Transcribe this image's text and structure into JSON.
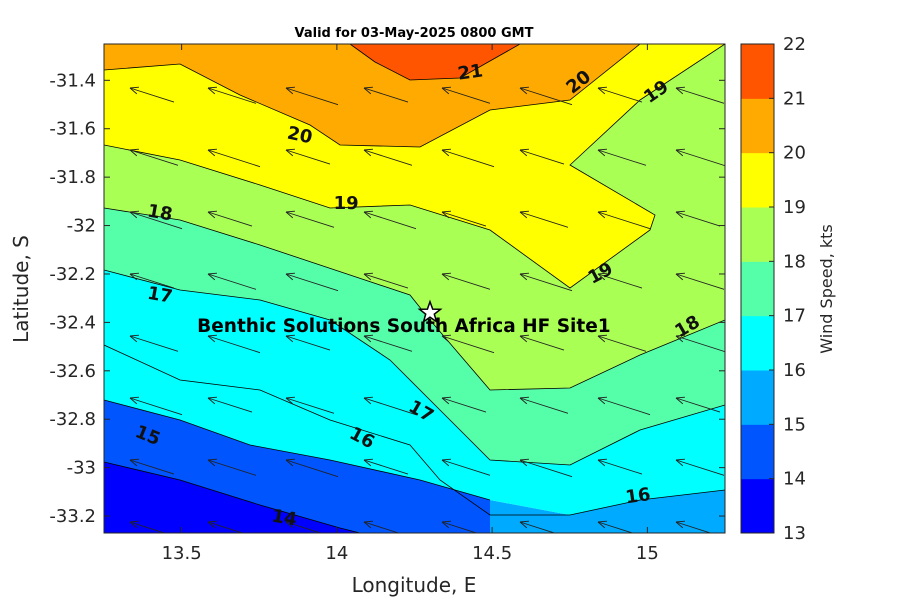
{
  "chart_data": {
    "type": "contour",
    "title": "Valid for 03-May-2025 0800 GMT",
    "xlabel": "Longitude, E",
    "ylabel": "Latitude, S",
    "xlim": [
      13.25,
      15.25
    ],
    "ylim": [
      -33.27,
      -31.25
    ],
    "xticks": [
      13.5,
      14,
      14.5,
      15
    ],
    "xtick_labels": [
      "13.5",
      "14",
      "14.5",
      "15"
    ],
    "yticks": [
      -31.4,
      -31.6,
      -31.8,
      -32,
      -32.2,
      -32.4,
      -32.6,
      -32.8,
      -33,
      -33.2
    ],
    "ytick_labels": [
      "-31.4",
      "-31.6",
      "-31.8",
      "-32",
      "-32.2",
      "-32.4",
      "-32.6",
      "-32.8",
      "-33",
      "-33.2"
    ],
    "contour_labels": [
      {
        "text": "21",
        "lon": 14.43,
        "lat": -31.37,
        "angle": -8
      },
      {
        "text": "20",
        "lon": 14.78,
        "lat": -31.41,
        "angle": -38
      },
      {
        "text": "19",
        "lon": 15.03,
        "lat": -31.45,
        "angle": -35
      },
      {
        "text": "20",
        "lon": 13.88,
        "lat": -31.63,
        "angle": 12
      },
      {
        "text": "19",
        "lon": 14.03,
        "lat": -31.91,
        "angle": 0
      },
      {
        "text": "18",
        "lon": 13.43,
        "lat": -31.95,
        "angle": 10
      },
      {
        "text": "19",
        "lon": 14.85,
        "lat": -32.2,
        "angle": -28
      },
      {
        "text": "17",
        "lon": 13.43,
        "lat": -32.29,
        "angle": 10
      },
      {
        "text": "18",
        "lon": 15.13,
        "lat": -32.42,
        "angle": -30
      },
      {
        "text": "17",
        "lon": 14.27,
        "lat": -32.77,
        "angle": 30
      },
      {
        "text": "16",
        "lon": 14.08,
        "lat": -32.88,
        "angle": 28
      },
      {
        "text": "15",
        "lon": 13.39,
        "lat": -32.87,
        "angle": 22
      },
      {
        "text": "16",
        "lon": 14.97,
        "lat": -33.12,
        "angle": -8
      },
      {
        "text": "14",
        "lon": 13.83,
        "lat": -33.21,
        "angle": 10
      }
    ],
    "site": {
      "label": "Benthic Solutions South Africa HF Site1",
      "lon": 14.3,
      "lat": -32.36
    },
    "colorbar": {
      "label": "Wind Speed, kts",
      "levels": [
        13,
        14,
        15,
        16,
        17,
        18,
        19,
        20,
        21,
        22
      ],
      "colors": [
        "#0000ff",
        "#0055ff",
        "#00aaff",
        "#00ffff",
        "#55ffaa",
        "#aaff55",
        "#ffff00",
        "#ffaa00",
        "#ff5500"
      ]
    },
    "vectors": {
      "direction": "from ESE to WNW",
      "color": "#222222"
    },
    "grid": false
  }
}
